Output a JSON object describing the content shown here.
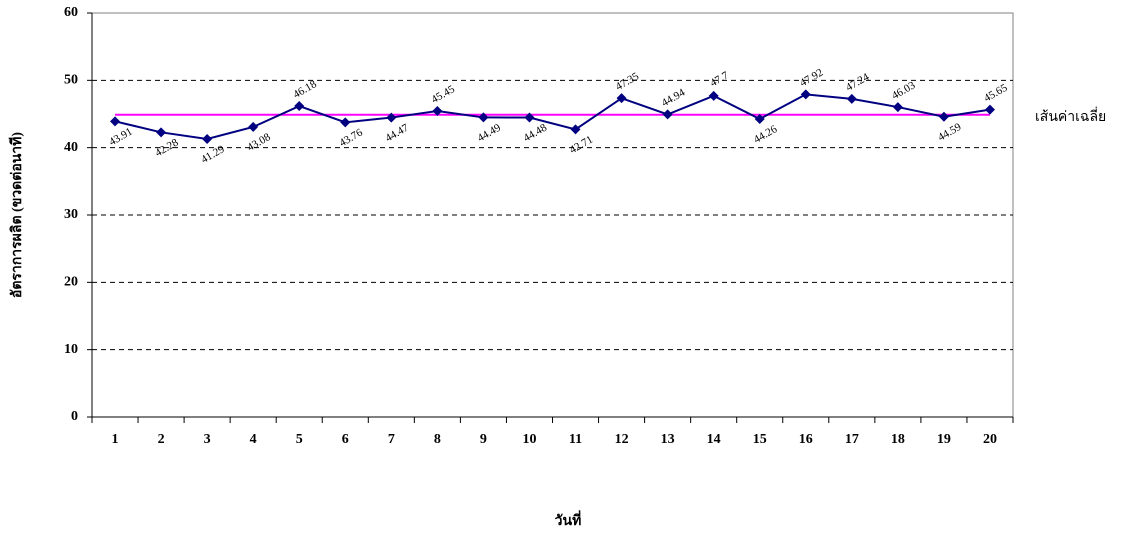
{
  "chart_data": {
    "type": "line",
    "x_label": "วันที่",
    "y_label": "อัตราการผลิต (ขวดต่อนาที)",
    "categories": [
      "1",
      "2",
      "3",
      "4",
      "5",
      "6",
      "7",
      "8",
      "9",
      "10",
      "11",
      "12",
      "13",
      "14",
      "15",
      "16",
      "17",
      "18",
      "19",
      "20"
    ],
    "series": [
      {
        "color": "#000080",
        "values": [
          43.91,
          42.28,
          41.29,
          43.08,
          46.18,
          43.76,
          44.47,
          45.45,
          44.49,
          44.48,
          42.71,
          47.35,
          44.94,
          47.7,
          44.26,
          47.92,
          47.24,
          46.03,
          44.59,
          45.65
        ]
      }
    ],
    "reference_line": {
      "label": "เส้นค่าเฉลี่ย",
      "value": 44.89,
      "color": "#ff00ff"
    },
    "ylim": [
      0,
      60
    ],
    "yticks": [
      0,
      10,
      20,
      30,
      40,
      50,
      60
    ],
    "grid": true
  }
}
